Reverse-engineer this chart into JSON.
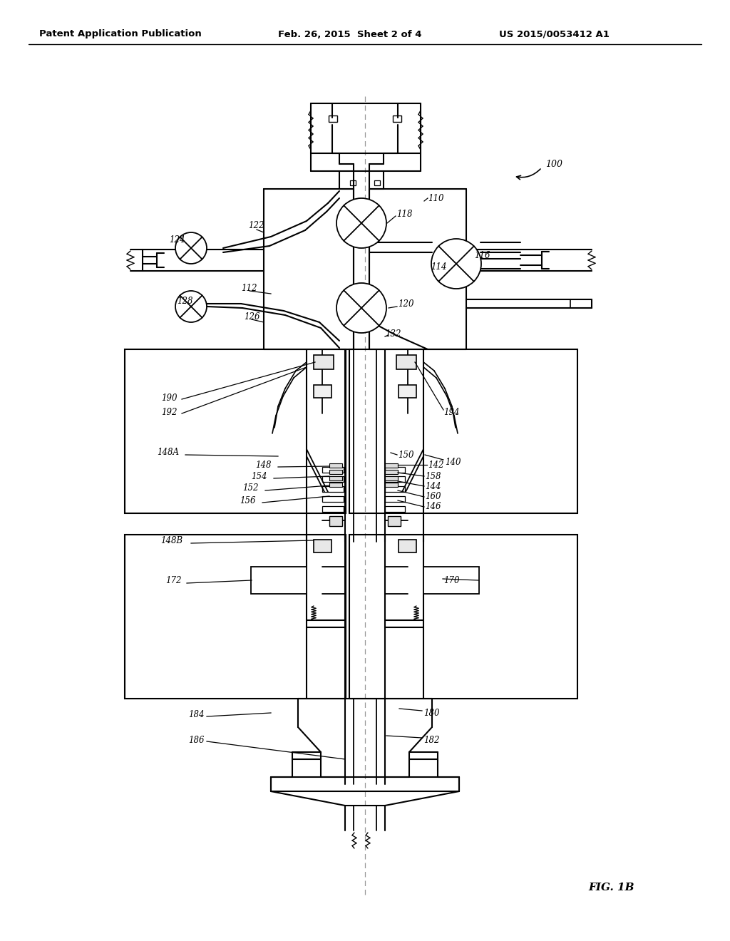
{
  "bg_color": "#ffffff",
  "title_left": "Patent Application Publication",
  "title_center": "Feb. 26, 2015  Sheet 2 of 4",
  "title_right": "US 2015/0053412 A1",
  "fig_label": "FIG. 1B",
  "line_color": "#000000",
  "dash_color": "#888888"
}
